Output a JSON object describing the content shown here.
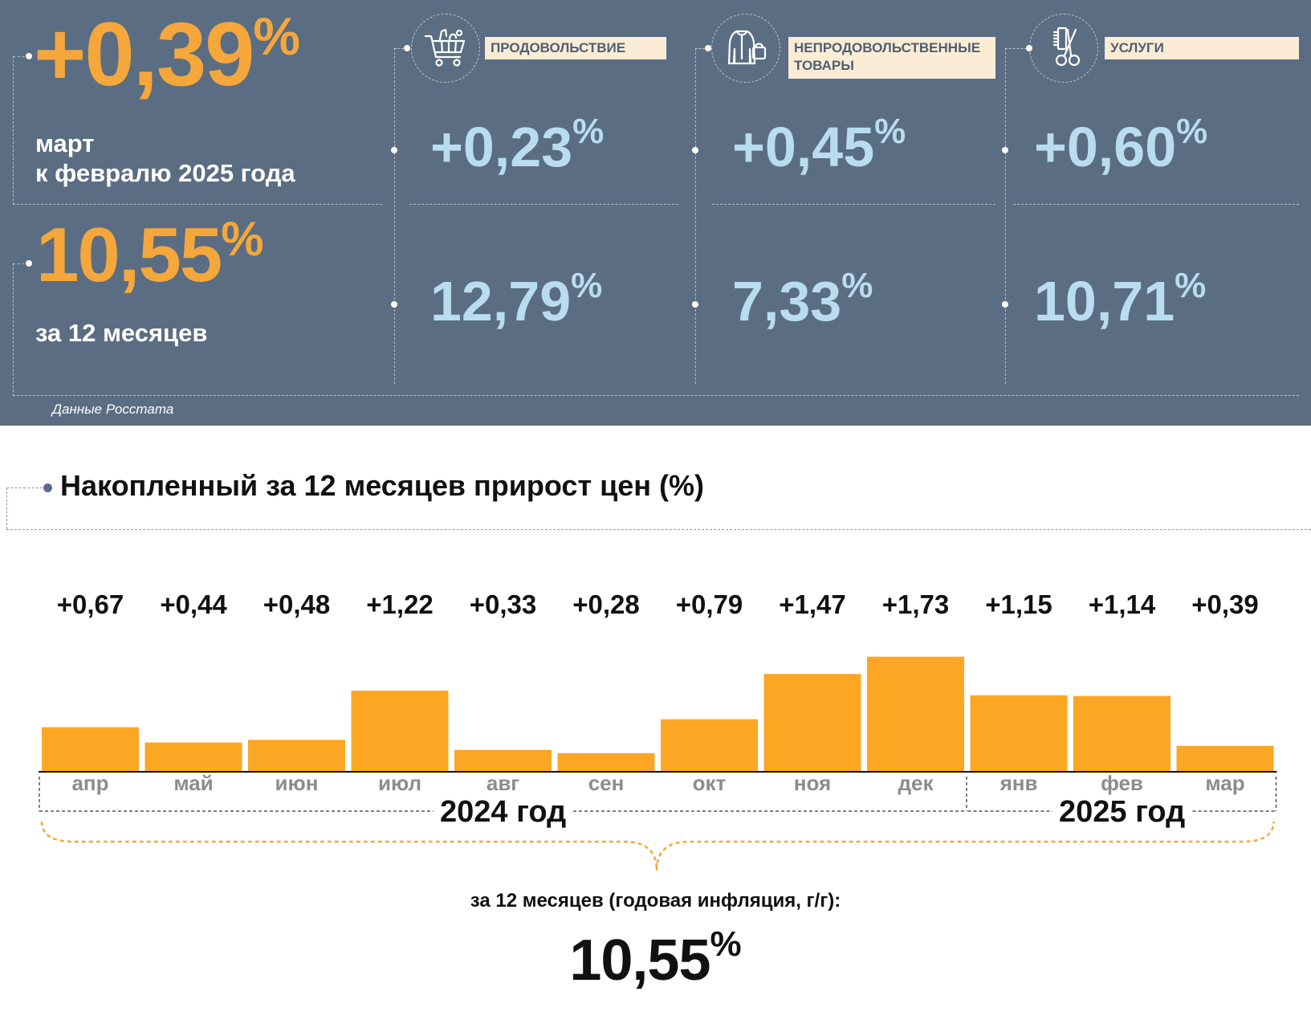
{
  "colors": {
    "panel_bg": "#5a6d82",
    "accent_orange": "#f5a73b",
    "category_value": "#b9dcf0",
    "tag_bg": "#fbecd6",
    "bar": "#fba724"
  },
  "monthly": {
    "value": "+0,39",
    "percent": "%",
    "label_line1": "март",
    "label_line2": "к февралю 2025 года"
  },
  "annual": {
    "value": "10,55",
    "percent": "%",
    "label": "за 12 месяцев"
  },
  "categories": [
    {
      "name": "ПРОДОВОЛЬСТВИЕ",
      "icon": "shopping-cart-icon",
      "monthly": "+0,23",
      "annual": "12,79"
    },
    {
      "name_line1": "НЕПРОДОВОЛЬСТВЕННЫЕ",
      "name_line2": "ТОВАРЫ",
      "icon": "clothes-bag-icon",
      "monthly": "+0,45",
      "annual": "7,33"
    },
    {
      "name": "УСЛУГИ",
      "icon": "comb-scissors-icon",
      "monthly": "+0,60",
      "annual": "10,71"
    }
  ],
  "percent_sign": "%",
  "source": "Данные Росстата",
  "chart_title": "Накопленный за 12 месяцев прирост цен (%)",
  "chart_data": {
    "type": "bar",
    "title": "Накопленный за 12 месяцев прирост цен (%)",
    "categories": [
      "апр",
      "май",
      "июн",
      "июл",
      "авг",
      "сен",
      "окт",
      "ноя",
      "дек",
      "янв",
      "фев",
      "мар"
    ],
    "values": [
      0.67,
      0.44,
      0.48,
      1.22,
      0.33,
      0.28,
      0.79,
      1.47,
      1.73,
      1.15,
      1.14,
      0.39
    ],
    "value_labels": [
      "+0,67",
      "+0,44",
      "+0,48",
      "+1,22",
      "+0,33",
      "+0,28",
      "+0,79",
      "+1,47",
      "+1,73",
      "+1,15",
      "+1,14",
      "+0,39"
    ],
    "groups": [
      {
        "label": "2024 год",
        "from": 0,
        "to": 8
      },
      {
        "label": "2025 год",
        "from": 9,
        "to": 11
      }
    ],
    "ylim": [
      0,
      1.75
    ],
    "grid": false,
    "legend": "none"
  },
  "summary": {
    "label": "за 12 месяцев (годовая инфляция, г/г):",
    "value": "10,55",
    "percent": "%"
  }
}
